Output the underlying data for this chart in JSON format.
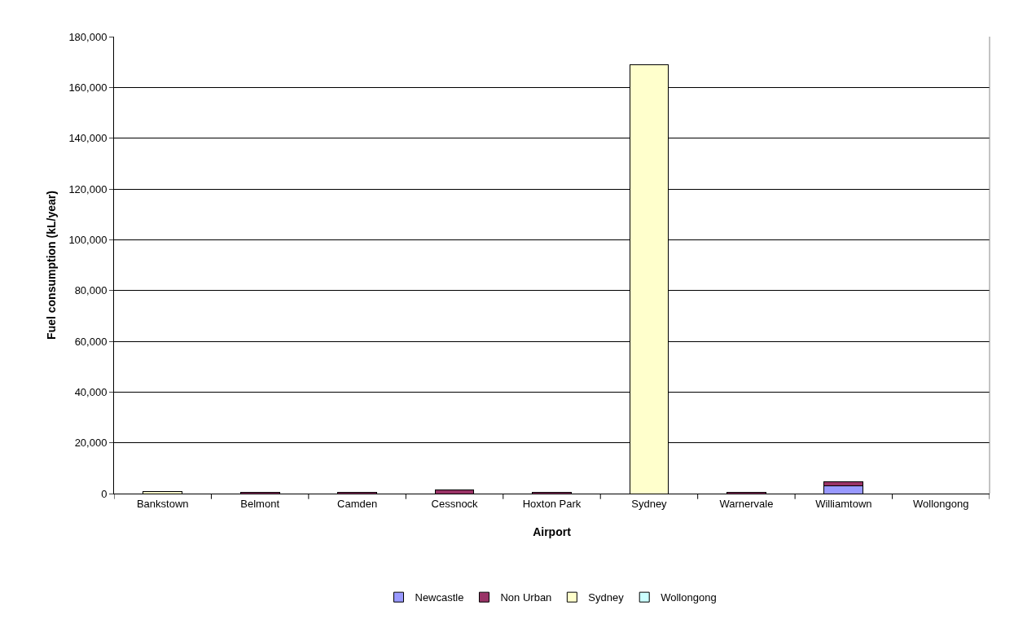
{
  "chart_data": {
    "type": "bar",
    "stacked": true,
    "xlabel": "Airport",
    "ylabel": "Fuel consumption (kL/year)",
    "categories": [
      "Bankstown",
      "Belmont",
      "Camden",
      "Cessnock",
      "Hoxton Park",
      "Sydney",
      "Warnervale",
      "Williamtown",
      "Wollongong"
    ],
    "series": [
      {
        "name": "Newcastle",
        "color": "#9999ff",
        "values": [
          null,
          null,
          null,
          null,
          null,
          null,
          null,
          3200,
          null
        ]
      },
      {
        "name": "Non Urban",
        "color": "#993366",
        "values": [
          null,
          400,
          400,
          1600,
          400,
          null,
          400,
          1500,
          null
        ]
      },
      {
        "name": "Sydney",
        "color": "#ffffcc",
        "values": [
          700,
          null,
          null,
          null,
          null,
          169000,
          null,
          null,
          null
        ]
      },
      {
        "name": "Wollongong",
        "color": "#ccffff",
        "values": [
          null,
          null,
          null,
          null,
          null,
          null,
          null,
          null,
          null
        ]
      }
    ],
    "ylim": [
      0,
      180000
    ],
    "yticks": [
      {
        "value": 0,
        "label": "0"
      },
      {
        "value": 20000,
        "label": "20,000"
      },
      {
        "value": 40000,
        "label": "40,000"
      },
      {
        "value": 60000,
        "label": "60,000"
      },
      {
        "value": 80000,
        "label": "80,000"
      },
      {
        "value": 100000,
        "label": "100,000"
      },
      {
        "value": 120000,
        "label": "120,000"
      },
      {
        "value": 140000,
        "label": "140,000"
      },
      {
        "value": 160000,
        "label": "160,000"
      },
      {
        "value": 180000,
        "label": "180,000"
      }
    ],
    "grid": "y",
    "legend": "bottom"
  }
}
